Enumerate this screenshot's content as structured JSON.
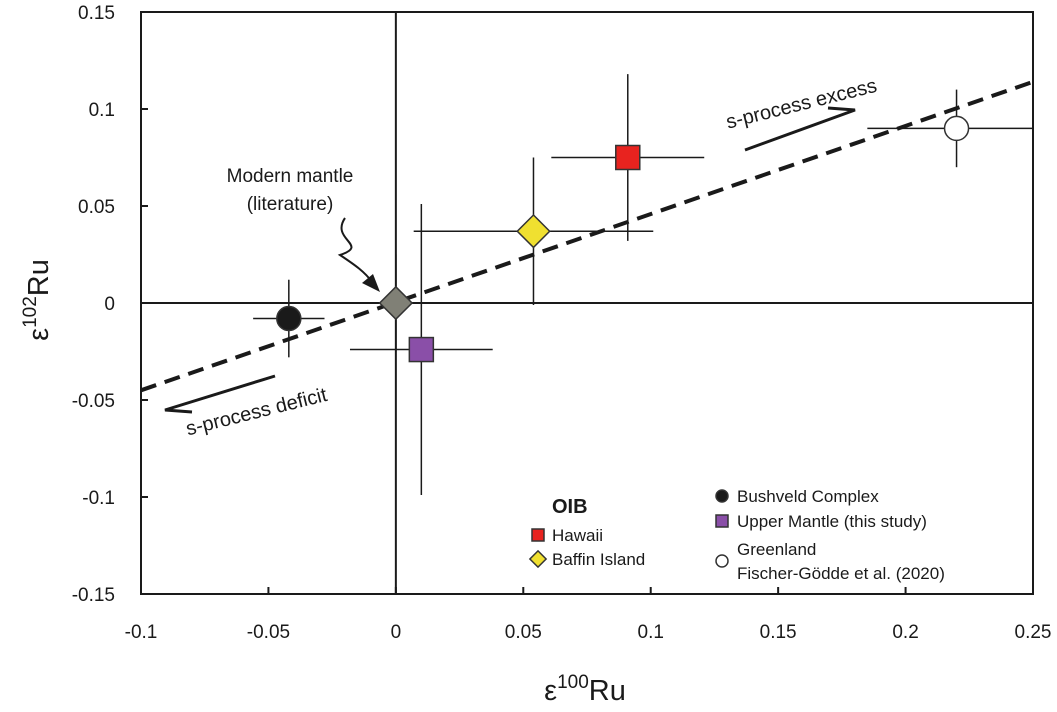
{
  "chart_data": {
    "type": "scatter",
    "xlabel": [
      "ε",
      "100",
      "Ru"
    ],
    "ylabel": [
      "ε",
      "102",
      "Ru"
    ],
    "xlim": [
      -0.1,
      0.25
    ],
    "ylim": [
      -0.15,
      0.15
    ],
    "xticks": [
      -0.1,
      -0.05,
      0,
      0.05,
      0.1,
      0.15,
      0.2,
      0.25
    ],
    "yticks": [
      -0.15,
      -0.1,
      -0.05,
      0,
      0.05,
      0.1,
      0.15
    ],
    "zero_lines": true,
    "trend_line": {
      "x": [
        -0.1,
        0.25
      ],
      "y": [
        -0.045,
        0.114
      ]
    },
    "series": [
      {
        "name": "Bushveld Complex",
        "color": "#1a1a1a",
        "marker": "circle",
        "x": [
          -0.042
        ],
        "y": [
          -0.008
        ],
        "xerr": [
          0.014
        ],
        "yerr": [
          0.02
        ]
      },
      {
        "color": "#808076",
        "marker": "diamond",
        "x": [
          0
        ],
        "y": [
          0
        ],
        "xerr": [
          0.025
        ],
        "yerr": [
          0.025
        ]
      },
      {
        "name": "Upper Mantle (this study)",
        "color": "#8a4fa8",
        "marker": "square",
        "x": [
          0.01
        ],
        "y": [
          -0.024
        ],
        "xerr": [
          0.028
        ],
        "yerr": [
          0.075
        ]
      },
      {
        "name": "Baffin Island",
        "color": "#f0e030",
        "marker": "diamond",
        "x": [
          0.054
        ],
        "y": [
          0.037
        ],
        "xerr": [
          0.047
        ],
        "yerr": [
          0.038
        ]
      },
      {
        "name": "Hawaii",
        "color": "#e8231f",
        "marker": "square",
        "x": [
          0.091
        ],
        "y": [
          0.075
        ],
        "xerr": [
          0.03
        ],
        "yerr": [
          0.043
        ]
      },
      {
        "name": [
          "Greenland",
          "Fischer-Gödde et al. (2020)"
        ],
        "color": "#ffffff",
        "marker": "circle",
        "x": [
          0.22
        ],
        "y": [
          0.09
        ],
        "xerr": [
          0.035
        ],
        "yerr": [
          0.02
        ]
      }
    ],
    "legend_title": "OIB",
    "annotations": [
      [
        "Modern mantle",
        "(literature)"
      ],
      "s-process excess",
      "s-process deficit"
    ]
  }
}
